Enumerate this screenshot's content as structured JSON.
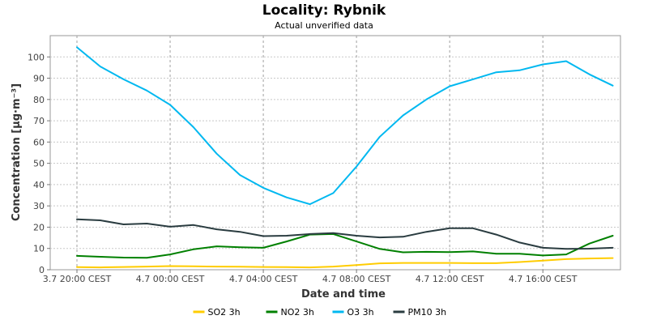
{
  "chart_data": {
    "type": "line",
    "title": "Locality: Rybnik",
    "subtitle": "Actual unverified data",
    "xlabel": "Date and time",
    "ylabel": "Concentration [µg·m⁻³]",
    "ylim": [
      0,
      110
    ],
    "y_ticks": [
      0,
      10,
      20,
      30,
      40,
      50,
      60,
      70,
      80,
      90,
      100
    ],
    "x_start": "3.7 20:00 CEST",
    "x_end": "4.7 19:00 CEST",
    "x_ticks": [
      {
        "hour": 0,
        "label": "3.7 20:00 CEST"
      },
      {
        "hour": 4,
        "label": "4.7 00:00 CEST"
      },
      {
        "hour": 8,
        "label": "4.7 04:00 CEST"
      },
      {
        "hour": 12,
        "label": "4.7 08:00 CEST"
      },
      {
        "hour": 16,
        "label": "4.7 12:00 CEST"
      },
      {
        "hour": 20,
        "label": "4.7 16:00 CEST"
      }
    ],
    "x": [
      "3.7 20:00",
      "3.7 21:00",
      "3.7 22:00",
      "3.7 23:00",
      "4.7 00:00",
      "4.7 01:00",
      "4.7 02:00",
      "4.7 03:00",
      "4.7 04:00",
      "4.7 05:00",
      "4.7 06:00",
      "4.7 07:00",
      "4.7 08:00",
      "4.7 09:00",
      "4.7 10:00",
      "4.7 11:00",
      "4.7 12:00",
      "4.7 13:00",
      "4.7 14:00",
      "4.7 15:00",
      "4.7 16:00",
      "4.7 17:00",
      "4.7 18:00",
      "4.7 19:00"
    ],
    "grid": true,
    "legend": "bottom",
    "series": [
      {
        "name": "SO2 3h",
        "color": "#ffcc00",
        "values": [
          1.2,
          1.1,
          1.3,
          1.5,
          1.7,
          1.6,
          1.5,
          1.4,
          1.3,
          1.2,
          1.1,
          1.5,
          2.2,
          3.0,
          3.2,
          3.2,
          3.2,
          3.1,
          3.1,
          3.6,
          4.3,
          5.0,
          5.3,
          5.5
        ]
      },
      {
        "name": "NO2 3h",
        "color": "#008000",
        "values": [
          6.5,
          6.1,
          5.7,
          5.6,
          7.2,
          9.6,
          11.0,
          10.6,
          10.3,
          13.3,
          16.5,
          16.8,
          13.3,
          9.8,
          8.2,
          8.4,
          8.3,
          8.6,
          7.5,
          7.5,
          6.7,
          7.2,
          12.3,
          16.0
        ]
      },
      {
        "name": "O3 3h",
        "color": "#00b8f0",
        "values": [
          104.5,
          95.5,
          89.5,
          84.2,
          77.5,
          67.0,
          54.5,
          44.5,
          38.5,
          34.0,
          30.8,
          36.0,
          48.5,
          62.5,
          72.5,
          80.0,
          86.2,
          89.5,
          92.8,
          93.7,
          96.5,
          98.0,
          91.8,
          86.5
        ]
      },
      {
        "name": "PM10 3h",
        "color": "#2a3c40",
        "values": [
          23.7,
          23.2,
          21.3,
          21.7,
          20.2,
          21.0,
          19.0,
          17.8,
          15.8,
          16.0,
          16.8,
          17.2,
          16.0,
          15.2,
          15.5,
          17.8,
          19.5,
          19.5,
          16.5,
          12.8,
          10.3,
          9.8,
          9.9,
          10.3
        ]
      }
    ]
  }
}
